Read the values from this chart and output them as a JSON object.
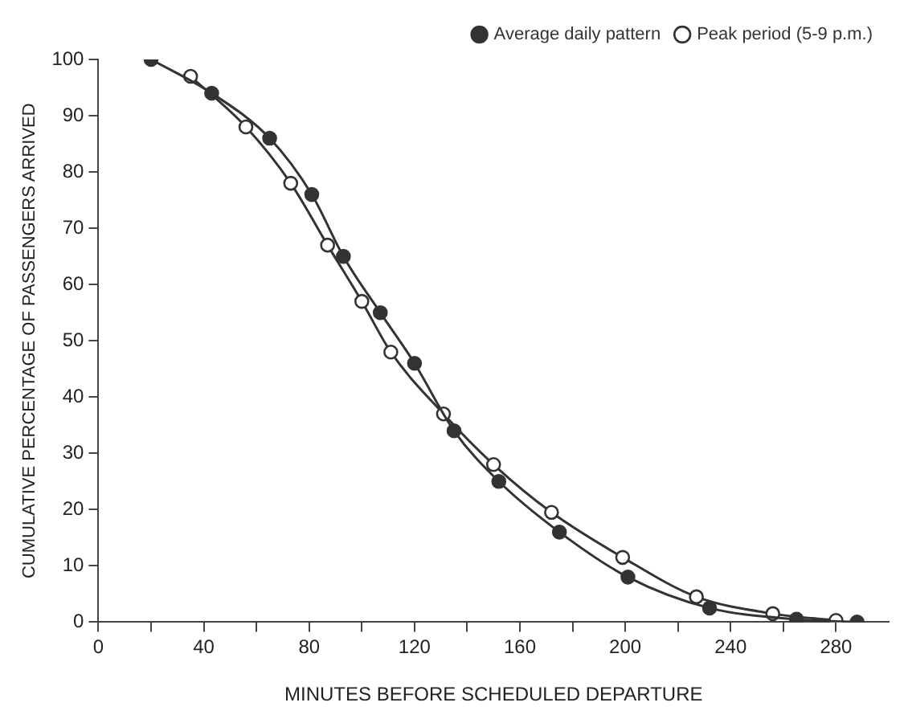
{
  "chart_data": {
    "type": "line",
    "xlabel": "MINUTES BEFORE SCHEDULED DEPARTURE",
    "ylabel": "CUMULATIVE PERCENTAGE OF PASSENGERS ARRIVED",
    "series": [
      {
        "name": "Average daily pattern",
        "color": "#333333",
        "x": [
          20,
          43,
          65,
          81,
          93,
          107,
          120,
          135,
          152,
          175,
          201,
          232,
          265,
          288
        ],
        "values": [
          100,
          94,
          86,
          76,
          65,
          55,
          46,
          34,
          25,
          16,
          8,
          2.5,
          0.5,
          0
        ]
      },
      {
        "name": "Peak period (5-9 p.m.)",
        "color": "#333333",
        "x": [
          35,
          56,
          73,
          87,
          100,
          111,
          131,
          150,
          172,
          199,
          227,
          256,
          280
        ],
        "values": [
          97,
          88,
          78,
          67,
          57,
          48,
          37,
          28,
          19.5,
          11.5,
          4.5,
          1.5,
          0.3
        ]
      }
    ],
    "xlim": [
      0,
      300
    ],
    "xticks": [
      0,
      {
        "value": 20,
        "label": null
      },
      40,
      {
        "value": 60,
        "label": null
      },
      80,
      {
        "value": 100,
        "label": null
      },
      120,
      {
        "value": 140,
        "label": null
      },
      160,
      {
        "value": 180,
        "label": null
      },
      200,
      {
        "value": 220,
        "label": null
      },
      240,
      {
        "value": 260,
        "label": null
      },
      280
    ],
    "ylim": [
      0,
      100
    ],
    "yticks": [
      0,
      10,
      20,
      30,
      40,
      50,
      60,
      70,
      80,
      90,
      100
    ],
    "grid": false,
    "legend": "top right",
    "marker": "circle",
    "line_style": "solid"
  }
}
